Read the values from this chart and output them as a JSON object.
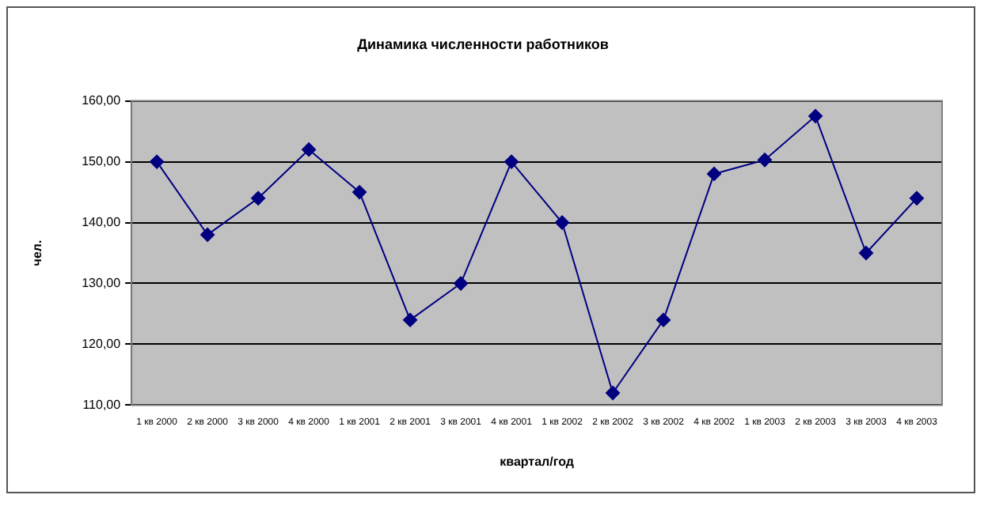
{
  "chart_data": {
    "type": "line",
    "title": "Динамика численности работников",
    "xlabel": "квартал/год",
    "ylabel": "чел.",
    "categories": [
      "1 кв 2000",
      "2 кв 2000",
      "3 кв 2000",
      "4 кв 2000",
      "1 кв 2001",
      "2 кв 2001",
      "3 кв 2001",
      "4 кв 2001",
      "1 кв 2002",
      "2 кв 2002",
      "3 кв 2002",
      "4 кв 2002",
      "1 кв 2003",
      "2 кв 2003",
      "3 кв 2003",
      "4 кв 2003"
    ],
    "series": [
      {
        "color": "#000080",
        "values": [
          150,
          138,
          144,
          152,
          145,
          124,
          130,
          150,
          140,
          112,
          124,
          148,
          150.3,
          157.5,
          135,
          144
        ]
      }
    ],
    "ylim": [
      110,
      160
    ],
    "yticks": [
      {
        "value": 110,
        "label": "110,00"
      },
      {
        "value": 120,
        "label": "120,00"
      },
      {
        "value": 130,
        "label": "130,00"
      },
      {
        "value": 140,
        "label": "140,00"
      },
      {
        "value": 150,
        "label": "150,00"
      },
      {
        "value": 160,
        "label": "160,00"
      }
    ],
    "grid": "y",
    "legend": false,
    "marker": "diamond",
    "line_style": "solid"
  }
}
